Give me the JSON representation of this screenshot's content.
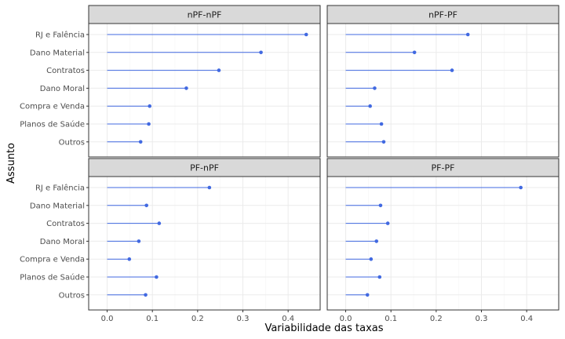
{
  "chart_data": {
    "type": "lollipop",
    "xlabel": "Variabilidade das taxas",
    "ylabel": "Assunto",
    "categories": [
      "RJ e Falência",
      "Dano Material",
      "Contratos",
      "Dano Moral",
      "Compra e Venda",
      "Planos de Saúde",
      "Outros"
    ],
    "xlim": [
      -0.02,
      0.45
    ],
    "xticks": [
      0.0,
      0.1,
      0.2,
      0.3,
      0.4
    ],
    "xtick_labels": [
      "0.0",
      "0.1",
      "0.2",
      "0.3",
      "0.4"
    ],
    "grid": true,
    "panels": [
      {
        "name": "nPF-nPF",
        "values": [
          0.44,
          0.34,
          0.247,
          0.175,
          0.094,
          0.092,
          0.074
        ]
      },
      {
        "name": "nPF-PF",
        "values": [
          0.27,
          0.152,
          0.235,
          0.064,
          0.054,
          0.079,
          0.084
        ]
      },
      {
        "name": "PF-nPF",
        "values": [
          0.226,
          0.087,
          0.115,
          0.07,
          0.049,
          0.109,
          0.085
        ]
      },
      {
        "name": "PF-PF",
        "values": [
          0.387,
          0.077,
          0.093,
          0.068,
          0.056,
          0.075,
          0.048
        ]
      }
    ],
    "colors": {
      "point": "#4169e1",
      "strip_fill": "#d9d9d9",
      "panel_border": "#333333",
      "grid_major": "#ebebeb",
      "grid_minor": "#f5f5f5"
    }
  }
}
